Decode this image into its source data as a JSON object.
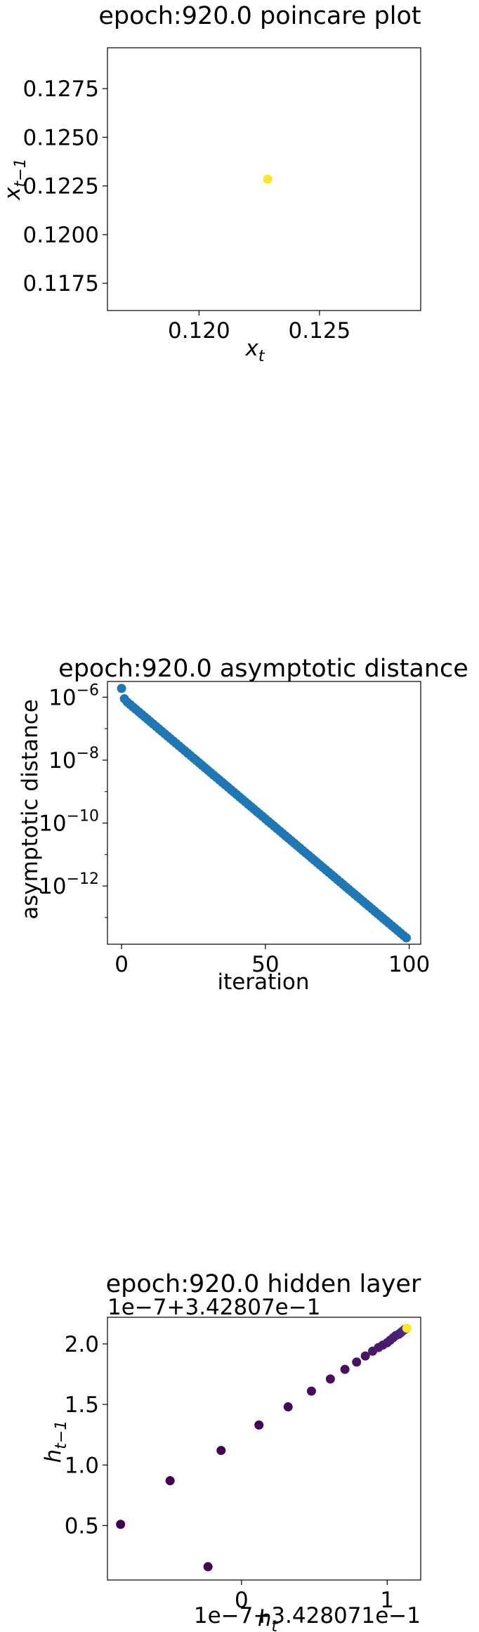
{
  "chart_data": [
    {
      "type": "scatter",
      "title": "epoch:920.0 poincare plot",
      "xlabel": "x",
      "xlabel_sub": "t",
      "ylabel": "x",
      "ylabel_sub": "t−1",
      "xlim": [
        0.1162,
        0.1292
      ],
      "ylim": [
        0.1161,
        0.1296
      ],
      "xticks": [
        0.12,
        0.125
      ],
      "xtick_labels": [
        "0.120",
        "0.125"
      ],
      "yticks": [
        0.1175,
        0.12,
        0.1225,
        0.125,
        0.1275
      ],
      "ytick_labels": [
        "0.1175",
        "0.1200",
        "0.1225",
        "0.1250",
        "0.1275"
      ],
      "grid": false,
      "points": [
        {
          "x": 0.12285,
          "y": 0.12285,
          "color": "#fde725"
        }
      ]
    },
    {
      "type": "scatter",
      "title": "epoch:920.0 asymptotic distance",
      "xlabel": "iteration",
      "ylabel": "asymptotic distance",
      "yscale": "log",
      "xlim": [
        -4.9,
        104
      ],
      "ylim_log10": [
        -13.85,
        -5.5
      ],
      "xticks": [
        0,
        50,
        100
      ],
      "xtick_labels": [
        "0",
        "50",
        "100"
      ],
      "yticks_log10": [
        -6,
        -8,
        -10,
        -12
      ],
      "ytick_bases": [
        "10",
        "10",
        "10",
        "10"
      ],
      "ytick_exps": [
        "−6",
        "−8",
        "−10",
        "−12"
      ],
      "grid": false,
      "color": "#1f77b4",
      "series": {
        "x_start": 0,
        "x_end": 99,
        "first_point_log10": -5.72,
        "second_point_log10": -6.05,
        "start_log10": -6.08,
        "end_log10": -13.65
      }
    },
    {
      "type": "scatter",
      "title": "epoch:920.0 hidden layer",
      "xlabel": "h",
      "xlabel_sub": "t",
      "ylabel": "h",
      "ylabel_sub": "t−1",
      "offset_top": "1e−7+3.42807e−1",
      "offset_bottom": "1e−7+3.428071e−1",
      "xlim": [
        -0.92,
        1.23
      ],
      "ylim": [
        0.05,
        2.22
      ],
      "xticks": [
        0,
        1
      ],
      "xtick_labels": [
        "0",
        "1"
      ],
      "yticks": [
        0.5,
        1.0,
        1.5,
        2.0
      ],
      "ytick_labels": [
        "0.5",
        "1.0",
        "1.5",
        "2.0"
      ],
      "grid": false,
      "points": [
        {
          "x": -0.83,
          "y": 0.51,
          "color": "#440154"
        },
        {
          "x": -0.49,
          "y": 0.87,
          "color": "#440154"
        },
        {
          "x": -0.23,
          "y": 0.16,
          "color": "#440154"
        },
        {
          "x": -0.14,
          "y": 1.12,
          "color": "#440154"
        },
        {
          "x": 0.12,
          "y": 1.33,
          "color": "#450457"
        },
        {
          "x": 0.32,
          "y": 1.48,
          "color": "#46085c"
        },
        {
          "x": 0.48,
          "y": 1.61,
          "color": "#460b5e"
        },
        {
          "x": 0.61,
          "y": 1.71,
          "color": "#470e61"
        },
        {
          "x": 0.71,
          "y": 1.79,
          "color": "#471063"
        },
        {
          "x": 0.79,
          "y": 1.85,
          "color": "#471365"
        },
        {
          "x": 0.85,
          "y": 1.9,
          "color": "#481467"
        },
        {
          "x": 0.9,
          "y": 1.94,
          "color": "#481769"
        },
        {
          "x": 0.94,
          "y": 1.97,
          "color": "#48186a"
        },
        {
          "x": 0.97,
          "y": 1.99,
          "color": "#481a6c"
        },
        {
          "x": 1.0,
          "y": 2.01,
          "color": "#481b6d"
        },
        {
          "x": 1.02,
          "y": 2.03,
          "color": "#481d6f"
        },
        {
          "x": 1.04,
          "y": 2.05,
          "color": "#481f70"
        },
        {
          "x": 1.06,
          "y": 2.07,
          "color": "#482071"
        },
        {
          "x": 1.08,
          "y": 2.08,
          "color": "#472374"
        },
        {
          "x": 1.09,
          "y": 2.09,
          "color": "#472575"
        },
        {
          "x": 1.1,
          "y": 2.1,
          "color": "#472777"
        },
        {
          "x": 1.11,
          "y": 2.11,
          "color": "#462a79"
        },
        {
          "x": 1.12,
          "y": 2.12,
          "color": "#452e7c"
        },
        {
          "x": 1.13,
          "y": 2.125,
          "color": "#433d84"
        },
        {
          "x": 1.135,
          "y": 2.13,
          "color": "#fde725"
        }
      ]
    }
  ]
}
